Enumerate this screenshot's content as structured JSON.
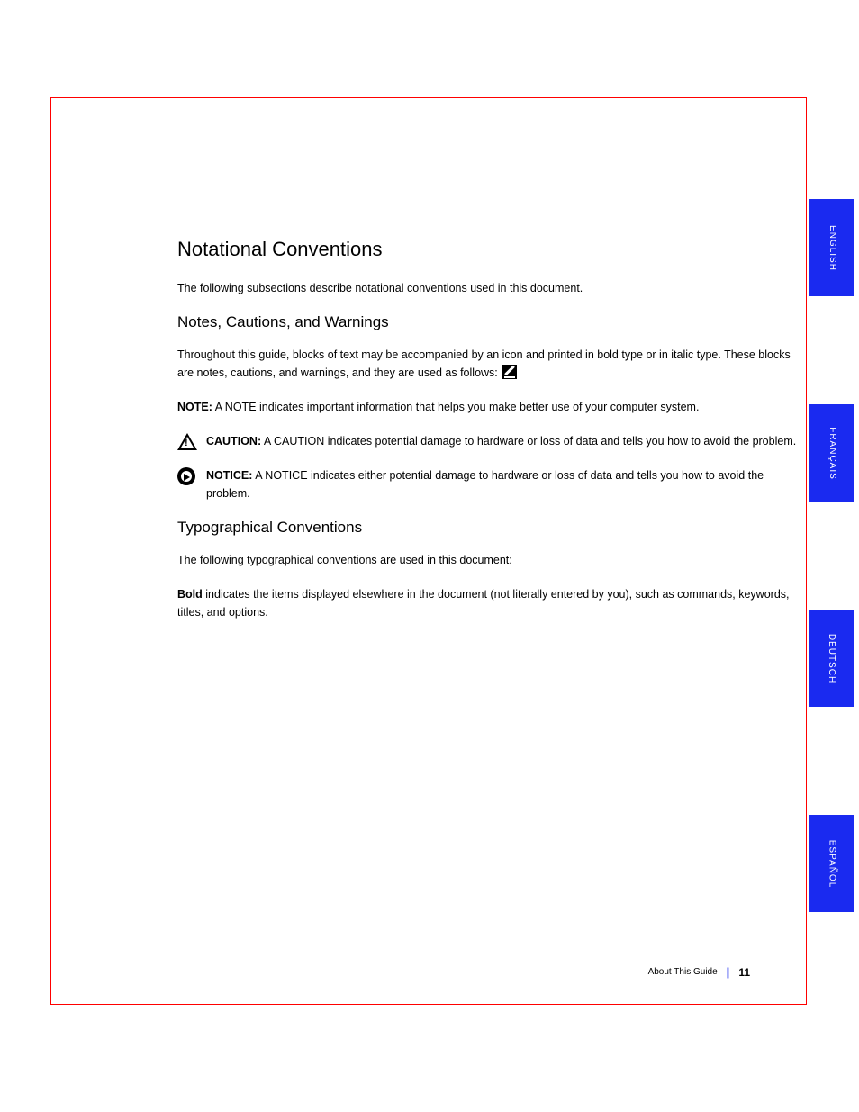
{
  "page": {
    "border_color": "#ff0000",
    "background_color": "#ffffff"
  },
  "section": {
    "title": "Notational Conventions",
    "intro": "The following subsections describe notational conventions used in this document."
  },
  "notes_block": {
    "heading": "Notes, Cautions, and Warnings",
    "lead_pre": "Throughout this guide, blocks of text may be accompanied by an icon and printed in bold type or in italic type. These blocks are notes, cautions, and warnings, and they are used as follows:",
    "note_inline_label_icon_alt": "edit-icon",
    "items": [
      {
        "icon": "edit",
        "label": "NOTE:",
        "text": "A NOTE indicates important information that helps you make better use of your computer system."
      },
      {
        "icon": "caution",
        "label": "CAUTION:",
        "text": "A CAUTION indicates potential damage to hardware or loss of data and tells you how to avoid the problem."
      },
      {
        "icon": "notice",
        "label": "NOTICE:",
        "text": "A NOTICE indicates either potential damage to hardware or loss of data and tells you how to avoid the problem."
      }
    ]
  },
  "typo_block": {
    "heading": "Typographical Conventions",
    "para1_pre": "The following typographical conventions are used in this document:",
    "items": [
      {
        "term": "Bold",
        "desc": "indicates the items displayed elsewhere in the document (not literally entered by you), such as commands, keywords, titles, and options."
      }
    ]
  },
  "tabs": [
    {
      "label": "ENGLISH"
    },
    {
      "label": "FRANÇAIS"
    },
    {
      "label": "DEUTSCH"
    },
    {
      "label": "ESPAÑOL"
    }
  ],
  "footer": {
    "text": "About This Guide",
    "page": "11"
  },
  "colors": {
    "tab_bg": "#1a2af0",
    "tab_text": "#ffffff",
    "text": "#000000",
    "sep": "#1a2af0"
  }
}
